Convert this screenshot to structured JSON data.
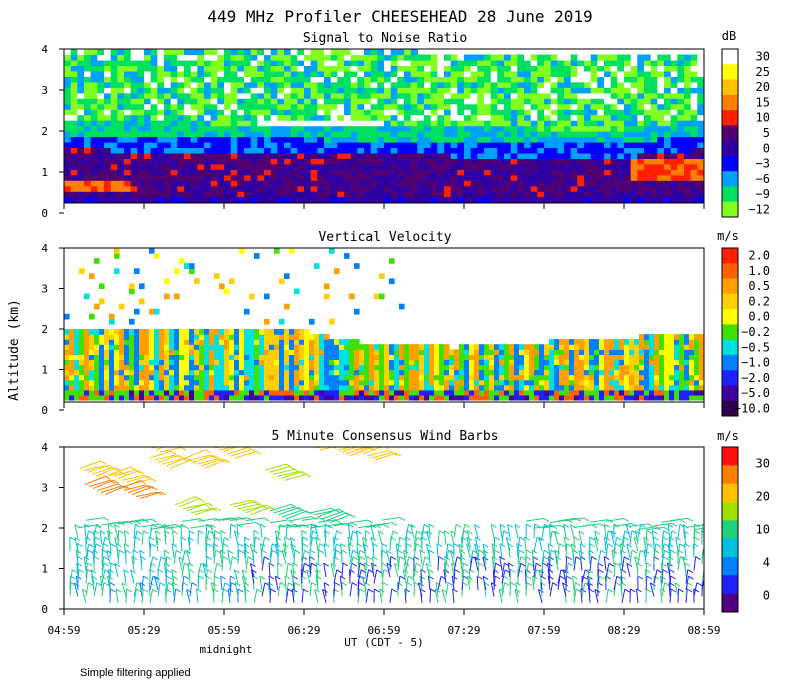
{
  "figure": {
    "title": "449 MHz Profiler CHEESEHEAD 28 June 2019",
    "ylabel": "Altitude (km)",
    "xlabel": "UT (CDT - 5)",
    "midnight_label": "midnight",
    "footnote": "Simple filtering applied",
    "time_ticks": [
      "04:59",
      "05:29",
      "05:59",
      "06:29",
      "06:59",
      "07:29",
      "07:59",
      "08:29",
      "08:59"
    ]
  },
  "chart_data": [
    {
      "type": "heatmap",
      "title": "Signal to Noise Ratio",
      "units": "dB",
      "xlabel": "UT (CDT - 5)",
      "ylabel": "Altitude (km)",
      "xlim": [
        "04:59",
        "08:59"
      ],
      "ylim": [
        0,
        4
      ],
      "yticks": [
        0,
        1,
        2,
        3,
        4
      ],
      "colorbar": {
        "labels": [
          "30",
          "25",
          "20",
          "15",
          "10",
          "5",
          "0",
          "−3",
          "−6",
          "−9",
          "−12"
        ],
        "colors": [
          "#ffffff",
          "#ffff00",
          "#ffc000",
          "#ff8000",
          "#ff2000",
          "#500070",
          "#3000a0",
          "#0000ff",
          "#00a0ff",
          "#00e060",
          "#80ff20"
        ]
      },
      "layers": [
        {
          "alt_range": [
            0.2,
            1.2
          ],
          "snr_db": [
            5,
            10
          ],
          "note_color": "#500070"
        },
        {
          "alt_range": [
            0.6,
            0.9
          ],
          "snr_db": [
            10,
            15
          ],
          "time": [
            "04:59",
            "05:29"
          ]
        },
        {
          "alt_range": [
            0.8,
            1.4
          ],
          "snr_db": [
            10,
            15
          ],
          "time": [
            "08:29",
            "08:59"
          ]
        },
        {
          "alt_range": [
            1.2,
            2.2
          ],
          "snr_db": [
            -3,
            0
          ]
        },
        {
          "alt_range": [
            2.0,
            4.0
          ],
          "snr_db": [
            -12,
            -6
          ]
        }
      ]
    },
    {
      "type": "heatmap",
      "title": "Vertical Velocity",
      "units": "m/s",
      "xlabel": "UT (CDT - 5)",
      "ylabel": "Altitude (km)",
      "xlim": [
        "04:59",
        "08:59"
      ],
      "ylim": [
        0,
        4
      ],
      "yticks": [
        0,
        1,
        2,
        3,
        4
      ],
      "colorbar": {
        "labels": [
          "2.0",
          "1.0",
          "0.5",
          "0.2",
          "0.0",
          "−0.2",
          "−0.5",
          "−1.0",
          "−2.0",
          "−5.0",
          "−10.0"
        ],
        "colors": [
          "#ff2000",
          "#ff6000",
          "#ffa000",
          "#ffd000",
          "#ffff00",
          "#40e000",
          "#00e0e0",
          "#0080ff",
          "#2020ff",
          "#4000a0",
          "#300050"
        ]
      },
      "layers": [
        {
          "alt_range": [
            0.3,
            2.1
          ],
          "vv_ms": [
            -1.0,
            0.5
          ]
        },
        {
          "alt_range": [
            0.3,
            0.5
          ],
          "vv_ms": [
            -5.0,
            2.0
          ]
        },
        {
          "alt_range": [
            2.2,
            4.0
          ],
          "vv_ms": [
            -0.5,
            0.5
          ]
        }
      ]
    },
    {
      "type": "wind_barbs",
      "title": "5 Minute Consensus Wind Barbs",
      "units": "m/s",
      "xlabel": "UT (CDT - 5)",
      "ylabel": "Altitude (km)",
      "xlim": [
        "04:59",
        "08:59"
      ],
      "ylim": [
        0,
        4
      ],
      "yticks": [
        0,
        1,
        2,
        3,
        4
      ],
      "colorbar": {
        "labels": [
          "30",
          "20",
          "10",
          "4",
          "0"
        ],
        "colors": [
          "#ff1010",
          "#ff8000",
          "#ffc000",
          "#a0e000",
          "#20d080",
          "#00c0e0",
          "#0080ff",
          "#2020ff",
          "#500080"
        ]
      },
      "layers": [
        {
          "alt_range": [
            0.1,
            1.8
          ],
          "speed_ms": [
            0,
            10
          ]
        },
        {
          "alt_range": [
            1.8,
            2.2
          ],
          "speed_ms": [
            8,
            12
          ]
        },
        {
          "alt_range": [
            2.4,
            4.0
          ],
          "speed_ms": [
            12,
            22
          ]
        }
      ]
    }
  ]
}
